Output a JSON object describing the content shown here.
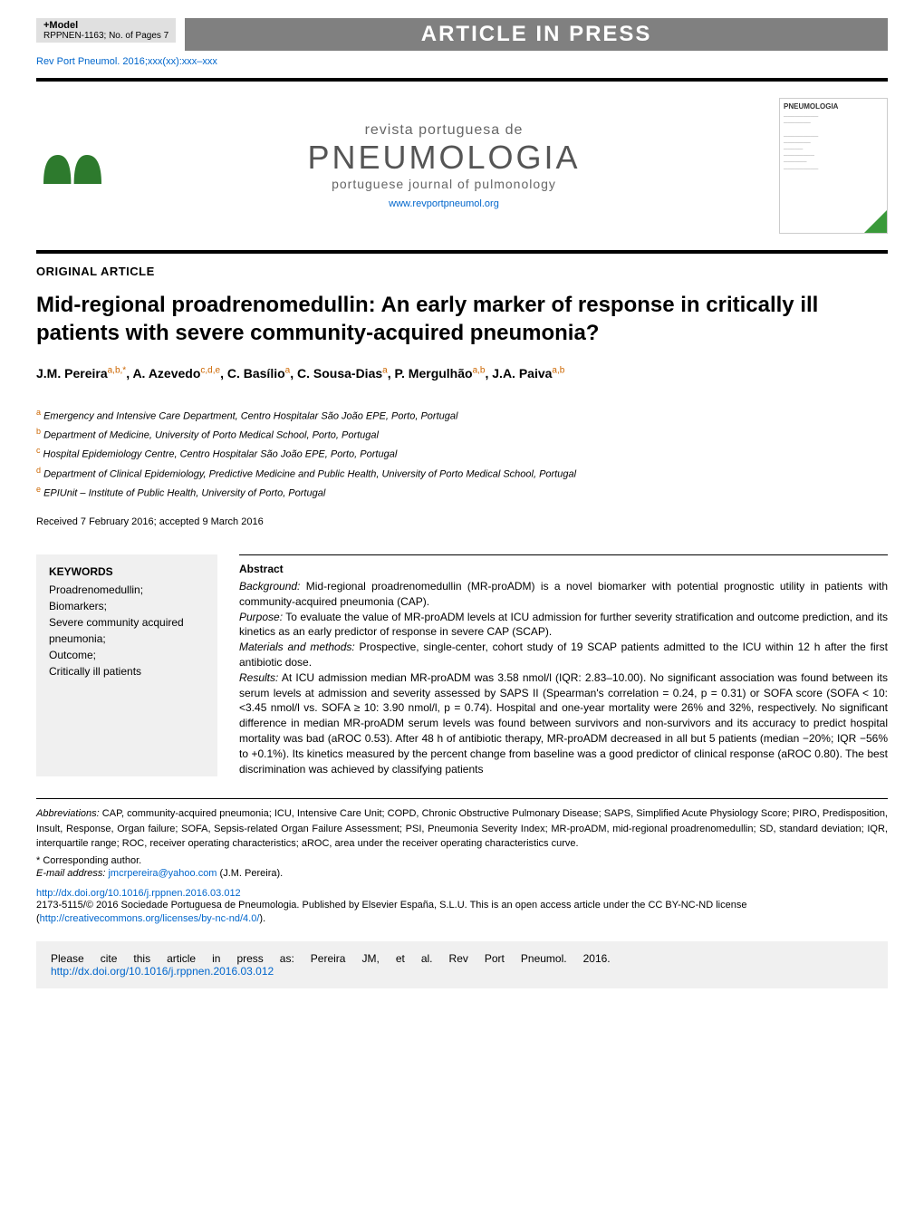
{
  "header": {
    "model_label": "+Model",
    "model_ref": "RPPNEN-1163;   No. of Pages 7",
    "banner": "ARTICLE IN PRESS",
    "journal_ref": "Rev Port Pneumol. 2016;xxx(xx):xxx–xxx"
  },
  "journal": {
    "revista": "revista portuguesa de",
    "name": "PNEUMOLOGIA",
    "subtitle": "portuguese journal of pulmonology",
    "url": "www.revportpneumol.org",
    "cover_brand": "PNEUMOLOGIA"
  },
  "article": {
    "type": "ORIGINAL ARTICLE",
    "title": "Mid-regional proadrenomedullin: An early marker of response in critically ill patients with severe community-acquired pneumonia?",
    "authors_html": "J.M. Pereira<sup>a,b,*</sup>, A. Azevedo<sup>c,d,e</sup>, C. Basílio<sup>a</sup>, C. Sousa-Dias<sup>a</sup>, P. Mergulhão<sup>a,b</sup>, J.A. Paiva<sup>a,b</sup>",
    "affiliations": [
      {
        "sup": "a",
        "text": "Emergency and Intensive Care Department, Centro Hospitalar São João EPE, Porto, Portugal"
      },
      {
        "sup": "b",
        "text": "Department of Medicine, University of Porto Medical School, Porto, Portugal"
      },
      {
        "sup": "c",
        "text": "Hospital Epidemiology Centre, Centro Hospitalar São João EPE, Porto, Portugal"
      },
      {
        "sup": "d",
        "text": "Department of Clinical Epidemiology, Predictive Medicine and Public Health, University of Porto Medical School, Portugal"
      },
      {
        "sup": "e",
        "text": "EPIUnit – Institute of Public Health, University of Porto, Portugal"
      }
    ],
    "received": "Received 7 February 2016; accepted 9 March 2016"
  },
  "keywords": {
    "heading": "KEYWORDS",
    "list": "Proadrenomedullin;\nBiomarkers;\nSevere community acquired pneumonia;\nOutcome;\nCritically ill patients"
  },
  "abstract": {
    "heading": "Abstract",
    "background_label": "Background:",
    "background": " Mid-regional proadrenomedullin (MR-proADM) is a novel biomarker with potential prognostic utility in patients with community-acquired pneumonia (CAP).",
    "purpose_label": "Purpose:",
    "purpose": " To evaluate the value of MR-proADM levels at ICU admission for further severity stratification and outcome prediction, and its kinetics as an early predictor of response in severe CAP (SCAP).",
    "methods_label": "Materials and methods:",
    "methods": " Prospective, single-center, cohort study of 19 SCAP patients admitted to the ICU within 12 h after the first antibiotic dose.",
    "results_label": "Results:",
    "results": " At ICU admission median MR-proADM was 3.58 nmol/l (IQR: 2.83–10.00). No significant association was found between its serum levels at admission and severity assessed by SAPS II (Spearman's correlation = 0.24, p = 0.31) or SOFA score (SOFA < 10: <3.45 nmol/l vs. SOFA ≥ 10: 3.90 nmol/l, p = 0.74). Hospital and one-year mortality were 26% and 32%, respectively. No significant difference in median MR-proADM serum levels was found between survivors and non-survivors and its accuracy to predict hospital mortality was bad (aROC 0.53). After 48 h of antibiotic therapy, MR-proADM decreased in all but 5 patients (median −20%; IQR −56% to +0.1%). Its kinetics measured by the percent change from baseline was a good predictor of clinical response (aROC 0.80). The best discrimination was achieved by classifying patients"
  },
  "footer": {
    "abbr_label": "Abbreviations:",
    "abbr_text": " CAP, community-acquired pneumonia; ICU, Intensive Care Unit; COPD, Chronic Obstructive Pulmonary Disease; SAPS, Simplified Acute Physiology Score; PIRO, Predisposition, Insult, Response, Organ failure; SOFA, Sepsis-related Organ Failure Assessment; PSI, Pneumonia Severity Index; MR-proADM, mid-regional proadrenomedullin; SD, standard deviation; IQR, interquartile range; ROC, receiver operating characteristics; aROC, area under the receiver operating characteristics curve.",
    "corresponding": "* Corresponding author.",
    "email_label": "E-mail address:",
    "email": "jmcrpereira@yahoo.com",
    "email_name": " (J.M. Pereira).",
    "doi_url": "http://dx.doi.org/10.1016/j.rppnen.2016.03.012",
    "license_text": "2173-5115/© 2016 Sociedade Portuguesa de Pneumologia. Published by Elsevier España, S.L.U. This is an open access article under the CC BY-NC-ND license (",
    "license_url": "http://creativecommons.org/licenses/by-nc-nd/4.0/",
    "license_close": ")."
  },
  "cite": {
    "words": [
      "Please",
      "cite",
      "this",
      "article",
      "in",
      "press",
      "as:",
      "Pereira",
      "JM,",
      "et",
      "al.",
      "Rev",
      "Port",
      "Pneumol.",
      "2016."
    ],
    "url": "http://dx.doi.org/10.1016/j.rppnen.2016.03.012"
  },
  "colors": {
    "link": "#0066cc",
    "sup": "#cc6600",
    "banner_bg": "#808080",
    "box_bg": "#f0f0f0"
  }
}
